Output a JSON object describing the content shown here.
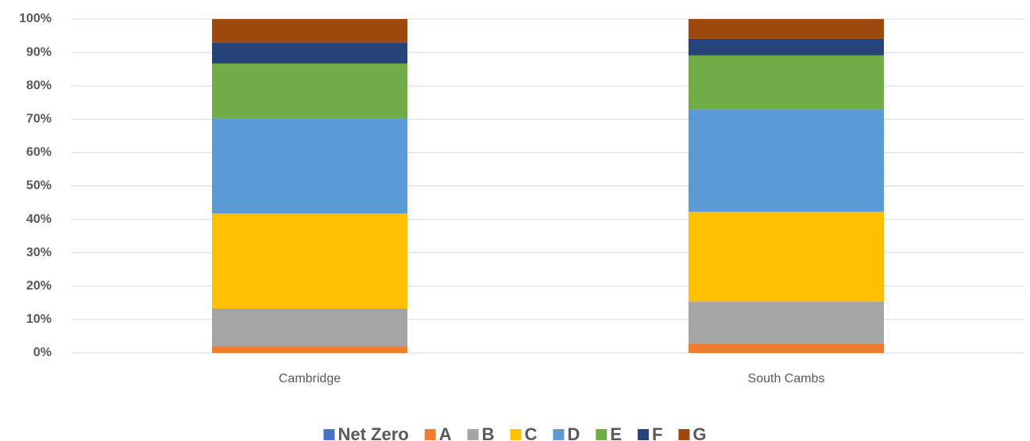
{
  "chart_data": {
    "type": "stacked_bar",
    "categories": [
      "Cambridge",
      "South Cambs"
    ],
    "series": [
      {
        "name": "Net Zero",
        "color": "#4472c4",
        "values": [
          0,
          0
        ]
      },
      {
        "name": "A",
        "color": "#ed7d31",
        "values": [
          2.0,
          2.9
        ]
      },
      {
        "name": "B",
        "color": "#a5a5a5",
        "values": [
          11.3,
          12.5
        ]
      },
      {
        "name": "C",
        "color": "#ffc000",
        "values": [
          28.5,
          26.9
        ]
      },
      {
        "name": "D",
        "color": "#5b9bd5",
        "values": [
          28.3,
          30.6
        ]
      },
      {
        "name": "E",
        "color": "#70ad47",
        "values": [
          16.6,
          16.2
        ]
      },
      {
        "name": "F",
        "color": "#264478",
        "values": [
          6.2,
          5.0
        ]
      },
      {
        "name": "G",
        "color": "#9e480e",
        "values": [
          7.1,
          5.9
        ]
      }
    ],
    "ylim": [
      0,
      100
    ],
    "yticks": [
      {
        "value": 0,
        "label": "0%"
      },
      {
        "value": 10,
        "label": "10%"
      },
      {
        "value": 20,
        "label": "20%"
      },
      {
        "value": 30,
        "label": "30%"
      },
      {
        "value": 40,
        "label": "40%"
      },
      {
        "value": 50,
        "label": "50%"
      },
      {
        "value": 60,
        "label": "60%"
      },
      {
        "value": 70,
        "label": "70%"
      },
      {
        "value": 80,
        "label": "80%"
      },
      {
        "value": 90,
        "label": "90%"
      },
      {
        "value": 100,
        "label": "100%"
      }
    ],
    "grid": true,
    "legend": "bottom"
  }
}
